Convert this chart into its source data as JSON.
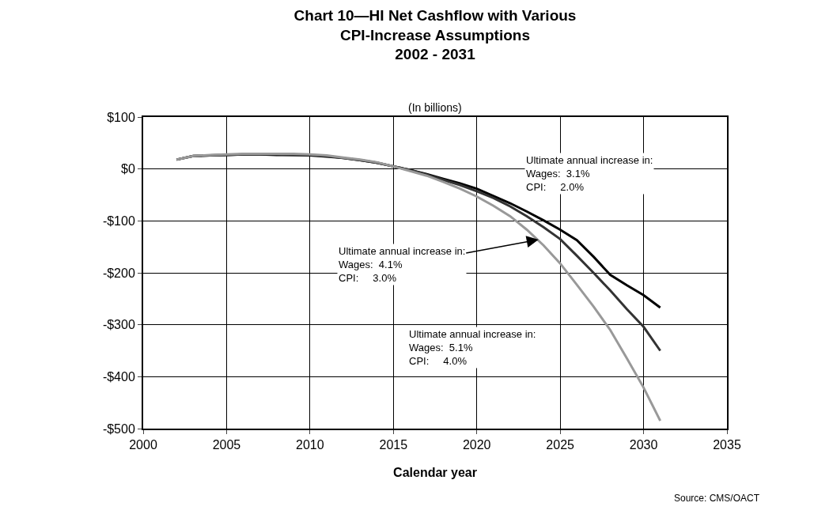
{
  "chart_data": {
    "type": "line",
    "title": "Chart 10—HI Net Cashflow with Various\nCPI-Increase Assumptions\n2002 - 2031",
    "subtitle": "(In billions)",
    "xlabel": "Calendar year",
    "x": [
      2002,
      2003,
      2004,
      2005,
      2006,
      2007,
      2008,
      2009,
      2010,
      2011,
      2012,
      2013,
      2014,
      2015,
      2016,
      2017,
      2018,
      2019,
      2020,
      2021,
      2022,
      2023,
      2024,
      2025,
      2026,
      2027,
      2028,
      2029,
      2030,
      2031
    ],
    "series": [
      {
        "color": "#000000",
        "values": [
          18,
          25,
          26,
          27,
          28,
          28,
          27,
          27,
          26,
          24,
          21,
          17,
          12,
          5,
          -2,
          -10,
          -19,
          -28,
          -38,
          -52,
          -66,
          -82,
          -99,
          -117,
          -137,
          -169,
          -204,
          -224,
          -243,
          -267
        ]
      },
      {
        "color": "#333333",
        "values": [
          18,
          25,
          26,
          27,
          28,
          28,
          28,
          27,
          27,
          25,
          21,
          17,
          12,
          5,
          -2,
          -11,
          -21,
          -31,
          -43,
          -56,
          -72,
          -91,
          -112,
          -135,
          -167,
          -200,
          -234,
          -270,
          -304,
          -350
        ]
      },
      {
        "color": "#999999",
        "values": [
          18,
          25,
          27,
          28,
          29,
          29,
          29,
          29,
          28,
          26,
          22,
          18,
          13,
          5,
          -4,
          -13,
          -25,
          -38,
          -53,
          -71,
          -91,
          -117,
          -147,
          -182,
          -223,
          -265,
          -310,
          -365,
          -421,
          -485
        ]
      }
    ],
    "xlim": [
      2000,
      2035
    ],
    "xticks": [
      2000,
      2005,
      2010,
      2015,
      2020,
      2025,
      2030,
      2035
    ],
    "ylim": [
      -500,
      100
    ],
    "yticks": [
      {
        "value": 100,
        "label": "$100"
      },
      {
        "value": 0,
        "label": "$0"
      },
      {
        "value": -100,
        "label": "-$100"
      },
      {
        "value": -200,
        "label": "-$200"
      },
      {
        "value": -300,
        "label": "-$300"
      },
      {
        "value": -400,
        "label": "-$400"
      },
      {
        "value": -500,
        "label": "-$500"
      }
    ],
    "grid": true,
    "marker": "none",
    "line_style": "solid",
    "annotations": [
      "Ultimate annual increase in:\nWages:  3.1%\nCPI:     2.0%",
      {
        "text": "Ultimate annual increase in:\nWages:  4.1%\nCPI:     3.0%",
        "x": 2023.7,
        "y": -136
      },
      "Ultimate annual increase in:\nWages:  5.1%\nCPI:     4.0%",
      "Source: CMS/OACT"
    ]
  }
}
